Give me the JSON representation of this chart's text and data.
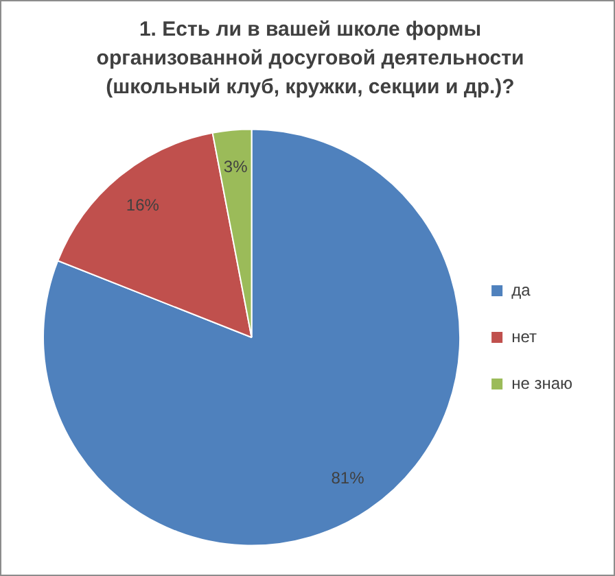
{
  "chart_data": {
    "type": "pie",
    "title": "1. Есть ли в вашей школе формы организованной досуговой деятельности (школьный клуб, кружки, секции и др.)?",
    "categories": [
      "да",
      "нет",
      "не знаю"
    ],
    "values": [
      81,
      16,
      3
    ],
    "value_labels": [
      "81%",
      "16%",
      "3%"
    ],
    "colors": [
      "#4f81bd",
      "#c0504d",
      "#9bbb59"
    ],
    "legend": "right"
  }
}
